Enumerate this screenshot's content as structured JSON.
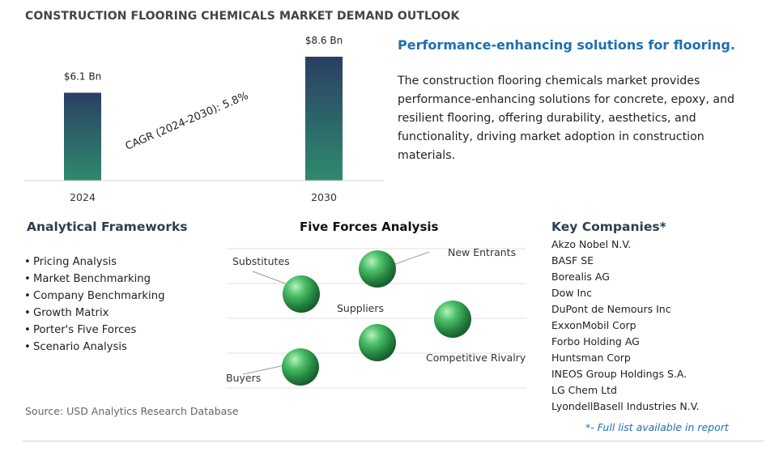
{
  "page": {
    "title": "CONSTRUCTION FLOORING CHEMICALS MARKET DEMAND OUTLOOK",
    "source": "Source: USD Analytics Research Database"
  },
  "chart_data": {
    "type": "bar",
    "title": "",
    "categories": [
      "2024",
      "2030"
    ],
    "values": [
      6.1,
      8.6
    ],
    "value_labels": [
      "$6.1 Bn",
      "$8.6 Bn"
    ],
    "unit": "Bn",
    "annotation": "CAGR (2024-2030):  5.8%",
    "ylim": [
      0,
      8.6
    ],
    "grid": false,
    "colors": {
      "bar_top": "#2a3f63",
      "bar_bottom": "#2f8a6e"
    }
  },
  "summary": {
    "headline": "Performance-enhancing solutions for flooring.",
    "description": "The construction flooring chemicals market provides performance-enhancing solutions for concrete, epoxy, and resilient flooring, offering durability, aesthetics, and functionality, driving market adoption in construction materials."
  },
  "frameworks": {
    "title": "Analytical Frameworks",
    "bullet": "•",
    "items": [
      "Pricing Analysis",
      "Market Benchmarking",
      "Company Benchmarking",
      "Growth Matrix",
      "Porter's Five Forces",
      "Scenario Analysis"
    ]
  },
  "five_forces": {
    "title": "Five Forces Analysis",
    "labels": [
      "Substitutes",
      "New Entrants",
      "Suppliers",
      "Competitive Rivalry",
      "Buyers"
    ],
    "sphere_color": "#2e9a4e"
  },
  "companies": {
    "title": "Key Companies*",
    "items": [
      "Akzo Nobel N.V.",
      "BASF SE",
      "Borealis AG",
      "Dow Inc",
      "DuPont de Nemours Inc",
      "ExxonMobil Corp",
      "Forbo Holding AG",
      "Huntsman Corp",
      "INEOS Group Holdings S.A.",
      "LG Chem Ltd",
      "LyondellBasell Industries N.V."
    ],
    "footnote": "*- Full list available in report"
  }
}
